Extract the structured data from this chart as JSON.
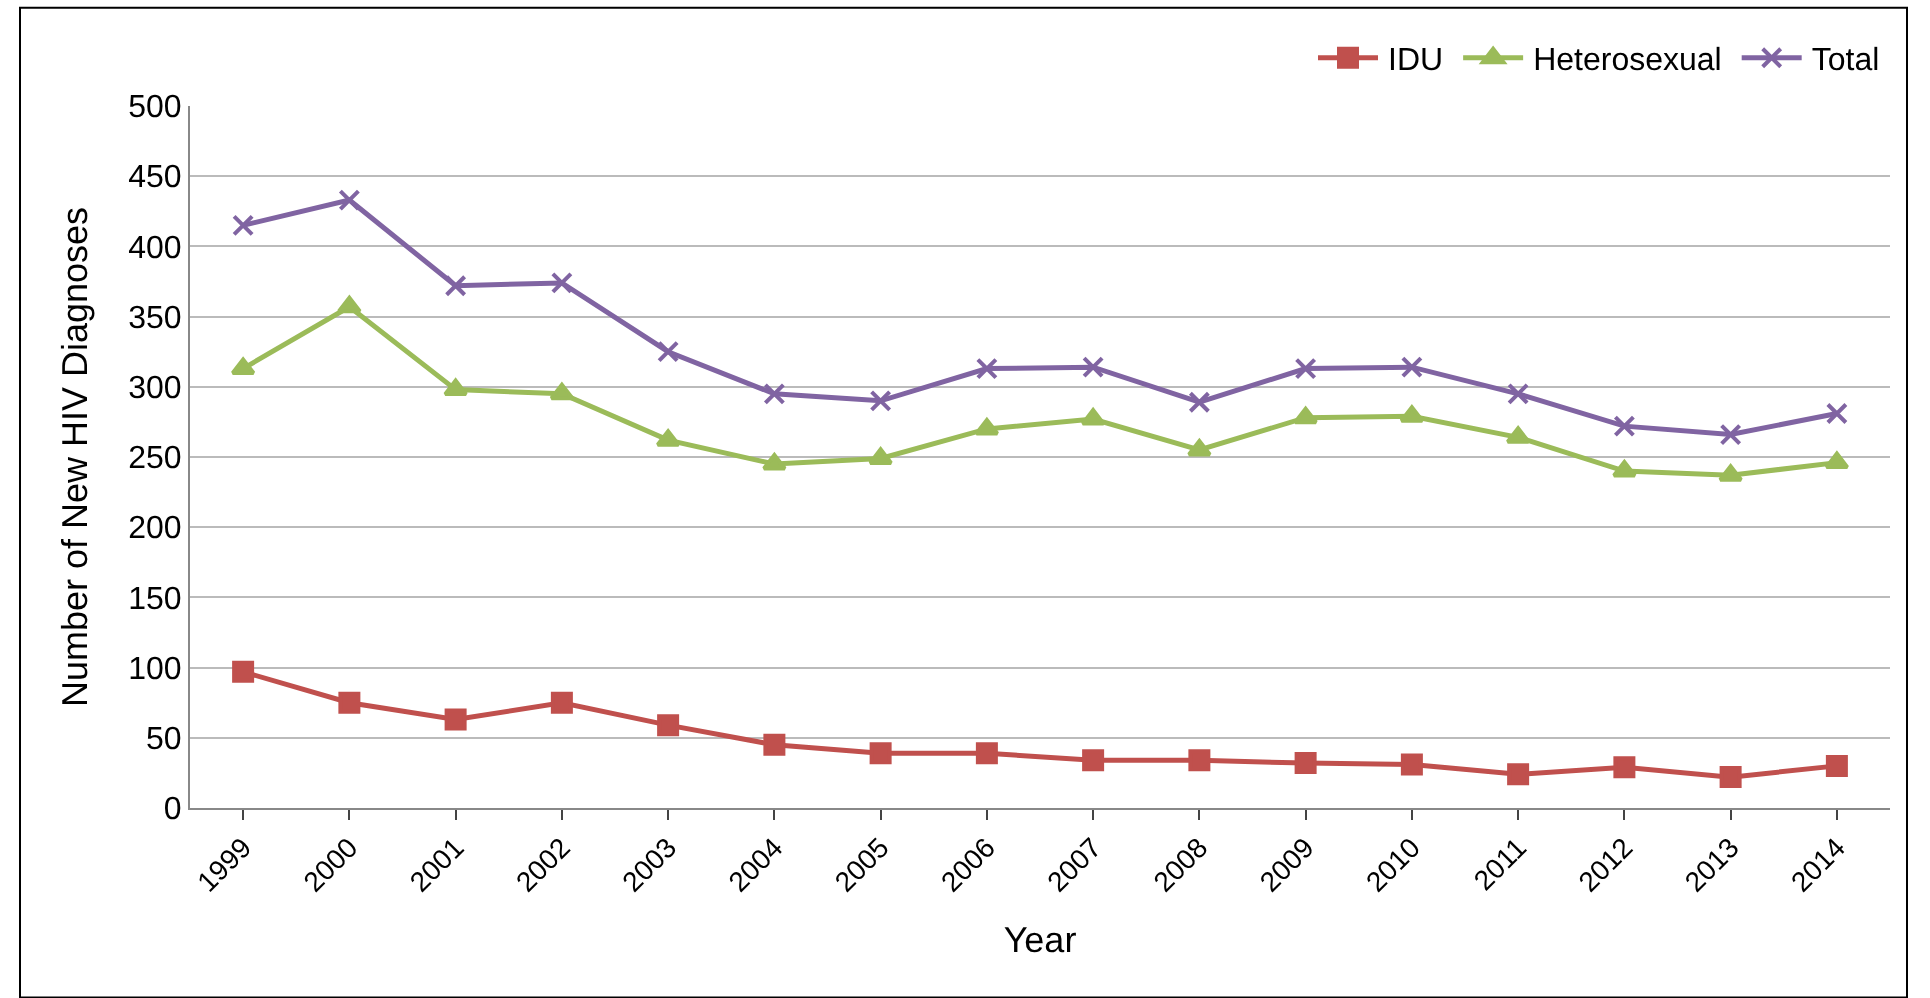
{
  "chart_data": {
    "type": "line",
    "xlabel": "Year",
    "ylabel": "Number of New HIV Diagnoses",
    "categories": [
      "1999",
      "2000",
      "2001",
      "2002",
      "2003",
      "2004",
      "2005",
      "2006",
      "2007",
      "2008",
      "2009",
      "2010",
      "2011",
      "2012",
      "2013",
      "2014"
    ],
    "series": [
      {
        "name": "IDU",
        "color": "#c0504d",
        "marker": "square",
        "values": [
          97,
          75,
          63,
          75,
          59,
          45,
          39,
          39,
          34,
          34,
          32,
          31,
          24,
          29,
          22,
          30
        ]
      },
      {
        "name": "Heterosexual",
        "color": "#9bbb59",
        "marker": "triangle",
        "values": [
          313,
          357,
          298,
          295,
          262,
          245,
          249,
          270,
          277,
          255,
          278,
          279,
          264,
          240,
          237,
          246
        ]
      },
      {
        "name": "Total",
        "color": "#8064a2",
        "marker": "cross",
        "values": [
          415,
          433,
          372,
          374,
          325,
          295,
          290,
          313,
          314,
          289,
          313,
          314,
          295,
          272,
          266,
          281
        ]
      }
    ],
    "ylim": [
      0,
      500
    ],
    "yticks": [
      0,
      50,
      100,
      150,
      200,
      250,
      300,
      350,
      400,
      450,
      500
    ],
    "grid": "y",
    "legend": "top right",
    "line_style": "solid"
  }
}
